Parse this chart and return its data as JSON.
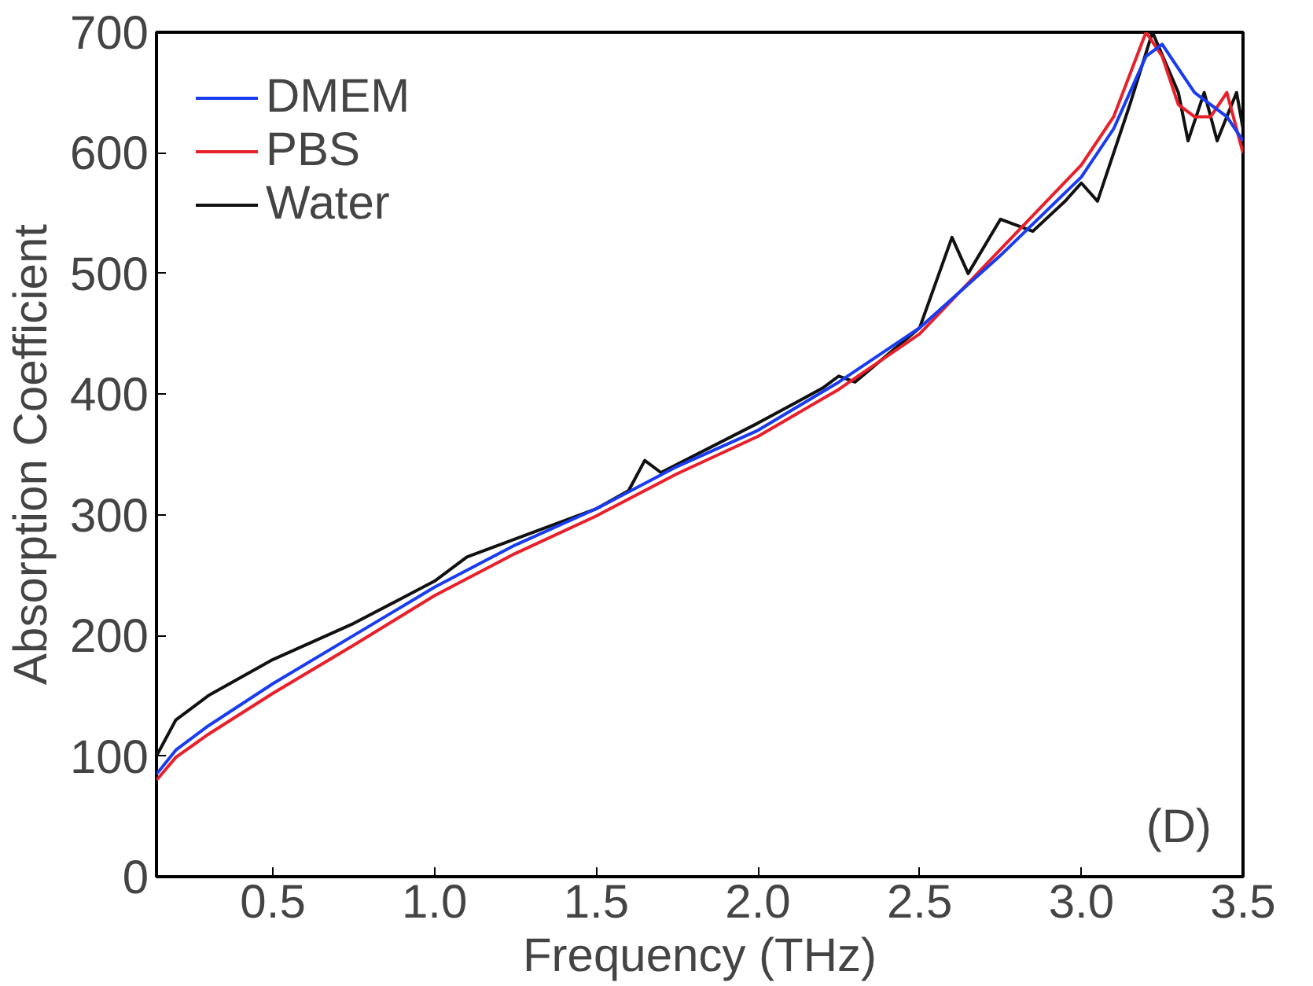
{
  "chart_data": {
    "type": "line",
    "xlabel": "Frequency (THz)",
    "ylabel": "Absorption Coefficient",
    "annotations": [
      "(D)"
    ],
    "xlim": [
      0.14,
      3.5
    ],
    "ylim": [
      0,
      700
    ],
    "xticks": [
      0.5,
      {
        "value": 1,
        "label": "1.0"
      },
      1.5,
      {
        "value": 2,
        "label": "2.0"
      },
      2.5,
      {
        "value": 3,
        "label": "3.0"
      },
      3.5
    ],
    "yticks": [
      0,
      100,
      200,
      300,
      400,
      500,
      600,
      700
    ],
    "grid": false,
    "legend": "top left",
    "line_style": "solid",
    "series": [
      {
        "name": "DMEM",
        "color": "#1a3cf0",
        "x": [
          0.14,
          0.2,
          0.3,
          0.5,
          0.75,
          1.0,
          1.25,
          1.5,
          1.75,
          2.0,
          2.25,
          2.5,
          2.75,
          3.0,
          3.1,
          3.2,
          3.25,
          3.3,
          3.35,
          3.4,
          3.45,
          3.5
        ],
        "values": [
          85,
          105,
          125,
          160,
          200,
          240,
          275,
          305,
          340,
          370,
          410,
          455,
          515,
          580,
          620,
          680,
          690,
          670,
          650,
          640,
          630,
          610
        ]
      },
      {
        "name": "PBS",
        "color": "#e8202a",
        "x": [
          0.14,
          0.2,
          0.3,
          0.5,
          0.75,
          1.0,
          1.25,
          1.5,
          1.75,
          2.0,
          2.25,
          2.5,
          2.75,
          3.0,
          3.1,
          3.2,
          3.25,
          3.3,
          3.35,
          3.4,
          3.45,
          3.5
        ],
        "values": [
          80,
          99,
          118,
          152,
          192,
          233,
          268,
          299,
          334,
          365,
          404,
          450,
          520,
          590,
          630,
          700,
          680,
          640,
          630,
          630,
          650,
          600
        ]
      },
      {
        "name": "Water",
        "color": "#111111",
        "x": [
          0.14,
          0.2,
          0.3,
          0.5,
          0.75,
          1.0,
          1.1,
          1.25,
          1.5,
          1.6,
          1.65,
          1.7,
          2.0,
          2.2,
          2.25,
          2.3,
          2.5,
          2.6,
          2.65,
          2.75,
          2.85,
          2.95,
          3.0,
          3.05,
          3.15,
          3.22,
          3.3,
          3.33,
          3.38,
          3.42,
          3.48,
          3.5
        ],
        "values": [
          100,
          130,
          150,
          180,
          210,
          245,
          265,
          280,
          305,
          320,
          345,
          335,
          376,
          405,
          415,
          410,
          455,
          530,
          500,
          545,
          535,
          560,
          575,
          560,
          640,
          700,
          650,
          610,
          650,
          610,
          650,
          620
        ]
      }
    ]
  }
}
